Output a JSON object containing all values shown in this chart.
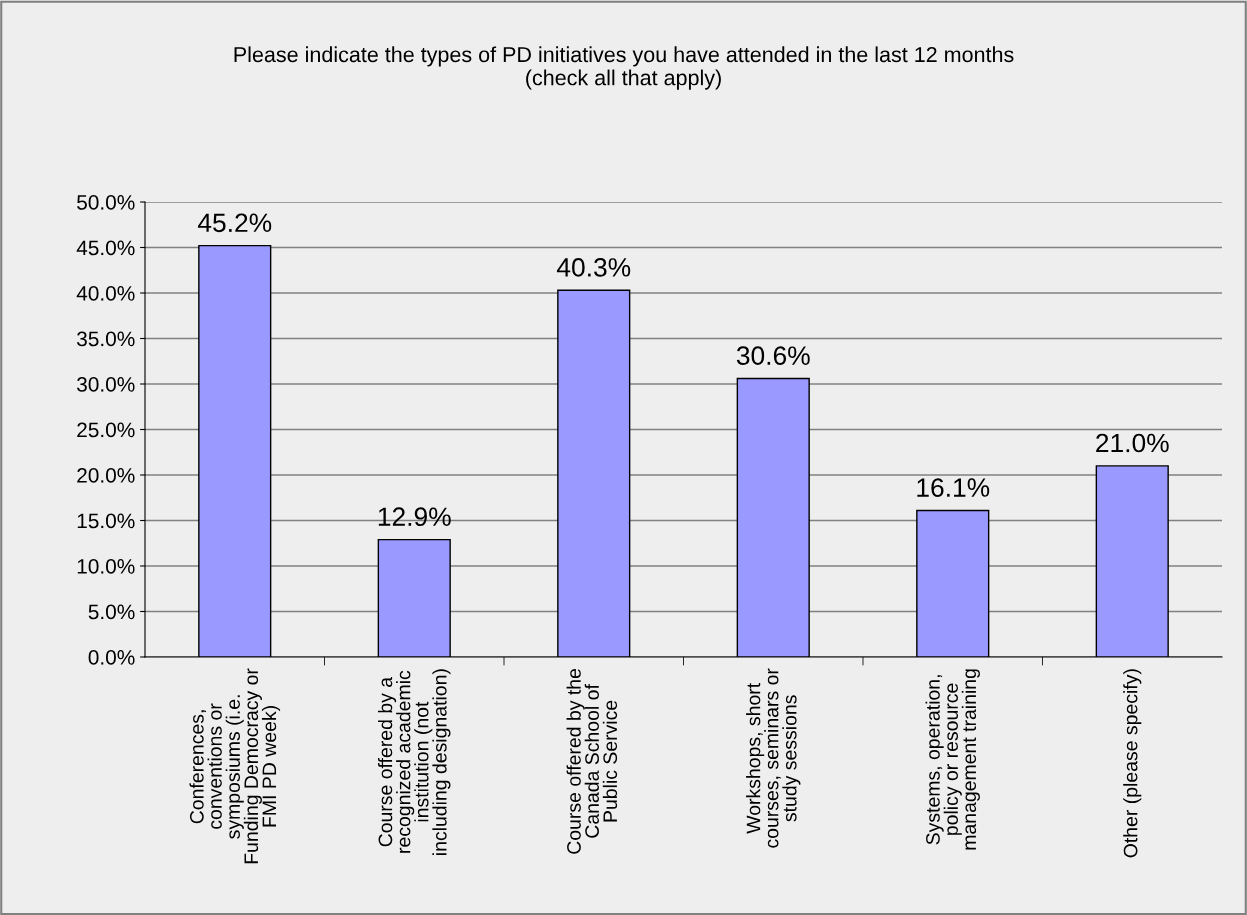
{
  "chart_data": {
    "type": "bar",
    "title": "Please indicate the types of PD initiatives you have attended in the last 12 months\n(check all that apply)",
    "categories": [
      "Conferences,\nconventions or\nsymposiums (i.e.\nFunding Democracy or\nFMI PD week)",
      "Course offered by a\nrecognized academic\ninstitution (not\nincluding designation)",
      "Course offered by the\nCanada School of\nPublic Service",
      "Workshops, short\ncourses, seminars or\nstudy sessions",
      "Systems, operation,\npolicy or resource\nmanagement training",
      "Other (please specify)"
    ],
    "values": [
      45.2,
      12.9,
      40.3,
      30.6,
      16.1,
      21.0
    ],
    "value_labels": [
      "45.2%",
      "12.9%",
      "40.3%",
      "30.6%",
      "16.1%",
      "21.0%"
    ],
    "color": "#9999ff",
    "ylim": [
      0,
      50
    ],
    "yticks": [
      {
        "value": 0,
        "label": "0.0%"
      },
      {
        "value": 5,
        "label": "5.0%"
      },
      {
        "value": 10,
        "label": "10.0%"
      },
      {
        "value": 15,
        "label": "15.0%"
      },
      {
        "value": 20,
        "label": "20.0%"
      },
      {
        "value": 25,
        "label": "25.0%"
      },
      {
        "value": 30,
        "label": "30.0%"
      },
      {
        "value": 35,
        "label": "35.0%"
      },
      {
        "value": 40,
        "label": "40.0%"
      },
      {
        "value": 45,
        "label": "45.0%"
      },
      {
        "value": 50,
        "label": "50.0%"
      }
    ],
    "grid": "y",
    "legend": false
  }
}
